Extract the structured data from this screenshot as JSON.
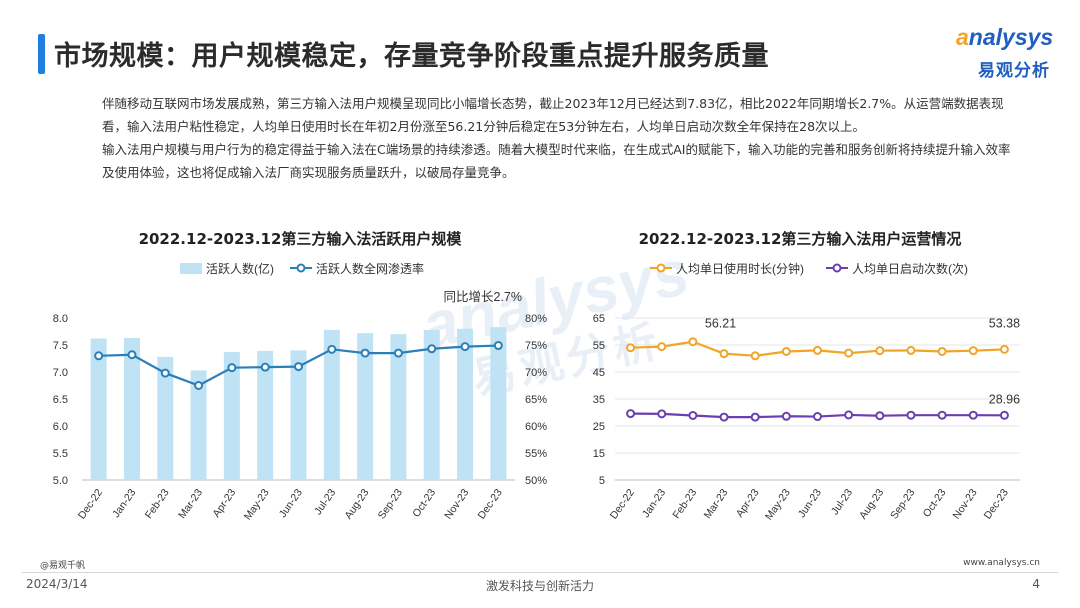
{
  "header": {
    "title": "市场规模：用户规模稳定，存量竞争阶段重点提升服务质量",
    "logo_en_a": "a",
    "logo_en_rest": "nalysys",
    "logo_cn": "易观分析"
  },
  "body": {
    "paragraph1": "伴随移动互联网市场发展成熟，第三方输入法用户规模呈现同比小幅增长态势，截止2023年12月已经达到7.83亿，相比2022年同期增长2.7%。从运营端数据表现看，输入法用户粘性稳定，人均单日使用时长在年初2月份涨至56.21分钟后稳定在53分钟左右，人均单日启动次数全年保持在28次以上。",
    "paragraph2": "输入法用户规模与用户行为的稳定得益于输入法在C端场景的持续渗透。随着大模型时代来临，在生成式AI的赋能下，输入功能的完善和服务创新将持续提升输入效率及使用体验，这也将促成输入法厂商实现服务质量跃升，以破局存量竞争。"
  },
  "watermark": {
    "en": "analysys",
    "cn": "易观分析"
  },
  "colors": {
    "accent": "#1f7fe0",
    "bar": "#bfe3f5",
    "penetration_line": "#2a7fb8",
    "duration_line": "#f0a526",
    "launches_line": "#6a3fb0"
  },
  "chart_data": [
    {
      "type": "bar",
      "title": "2022.12-2023.12第三方输入法活跃用户规模",
      "categories": [
        "Dec-22",
        "Jan-23",
        "Feb-23",
        "Mar-23",
        "Apr-23",
        "May-23",
        "Jun-23",
        "Jul-23",
        "Aug-23",
        "Sep-23",
        "Oct-23",
        "Nov-23",
        "Dec-23"
      ],
      "series": [
        {
          "name": "活跃人数(亿)",
          "type": "bar",
          "axis": "left",
          "values": [
            7.62,
            7.63,
            7.28,
            7.03,
            7.37,
            7.39,
            7.4,
            7.78,
            7.72,
            7.7,
            7.78,
            7.8,
            7.83
          ]
        },
        {
          "name": "活跃人数全网渗透率",
          "type": "line",
          "axis": "right",
          "values": [
            73.0,
            73.2,
            69.8,
            67.5,
            70.8,
            70.9,
            71.0,
            74.2,
            73.5,
            73.5,
            74.3,
            74.7,
            74.9
          ]
        }
      ],
      "ylim_left": [
        5.0,
        8.0
      ],
      "yticks_left": [
        "8.0",
        "7.5",
        "7.0",
        "6.5",
        "6.0",
        "5.5",
        "5.0"
      ],
      "ylim_right": [
        50,
        80
      ],
      "yticks_right": [
        "80%",
        "75%",
        "70%",
        "65%",
        "60%",
        "55%",
        "50%"
      ],
      "annotation": "同比增长2.7%",
      "legend": "top-left",
      "grid": false
    },
    {
      "type": "line",
      "title": "2022.12-2023.12第三方输入法用户运营情况",
      "categories": [
        "Dec-22",
        "Jan-23",
        "Feb-23",
        "Mar-23",
        "Apr-23",
        "May-23",
        "Jun-23",
        "Jul-23",
        "Aug-23",
        "Sep-23",
        "Oct-23",
        "Nov-23",
        "Dec-23"
      ],
      "series": [
        {
          "name": "人均单日使用时长(分钟)",
          "values": [
            54.0,
            54.4,
            56.21,
            51.8,
            51.0,
            52.6,
            53.0,
            52.0,
            52.9,
            53.0,
            52.6,
            52.9,
            53.38
          ]
        },
        {
          "name": "人均单日启动次数(次)",
          "values": [
            29.6,
            29.5,
            28.9,
            28.3,
            28.3,
            28.6,
            28.5,
            29.1,
            28.8,
            29.0,
            29.0,
            29.0,
            28.96
          ]
        }
      ],
      "ylim": [
        5,
        65
      ],
      "yticks": [
        "65",
        "55",
        "45",
        "35",
        "25",
        "15",
        "5"
      ],
      "data_labels": [
        "56.21",
        "53.38",
        "28.96"
      ],
      "legend": "top-left",
      "grid": true
    }
  ],
  "footer": {
    "source": "@易观千帆",
    "website": "www.analysys.cn",
    "date": "2024/3/14",
    "slogan": "激发科技与创新活力",
    "page": "4"
  }
}
